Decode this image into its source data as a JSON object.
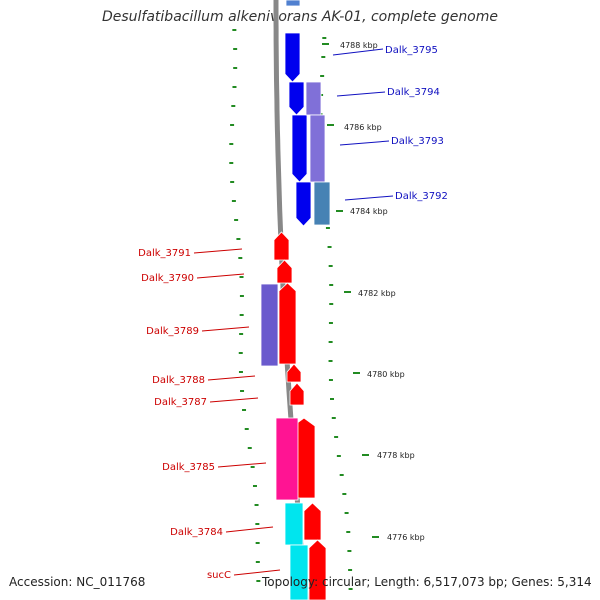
{
  "title": "Desulfatibacillum alkenivorans AK-01, complete genome",
  "footer": {
    "accession": "Accession: NC_011768",
    "topology": "Topology: circular; Length: 6,517,073 bp; Genes: 5,314"
  },
  "colors": {
    "forward_label": "#1010c0",
    "reverse_label": "#cc0000",
    "backbone": "#888888",
    "gc_skew": "#228b22"
  },
  "scale_ticks": [
    "4788 kbp",
    "4786 kbp",
    "4784 kbp",
    "4782 kbp",
    "4780 kbp",
    "4778 kbp",
    "4776 kbp"
  ],
  "genes": [
    {
      "label": "Dalk_3795",
      "strand": "forward"
    },
    {
      "label": "Dalk_3794",
      "strand": "forward"
    },
    {
      "label": "Dalk_3793",
      "strand": "forward"
    },
    {
      "label": "Dalk_3792",
      "strand": "forward"
    },
    {
      "label": "Dalk_3791",
      "strand": "reverse"
    },
    {
      "label": "Dalk_3790",
      "strand": "reverse"
    },
    {
      "label": "Dalk_3789",
      "strand": "reverse"
    },
    {
      "label": "Dalk_3788",
      "strand": "reverse"
    },
    {
      "label": "Dalk_3787",
      "strand": "reverse"
    },
    {
      "label": "Dalk_3785",
      "strand": "reverse"
    },
    {
      "label": "Dalk_3784",
      "strand": "reverse"
    },
    {
      "label": "sucC",
      "strand": "reverse"
    }
  ]
}
